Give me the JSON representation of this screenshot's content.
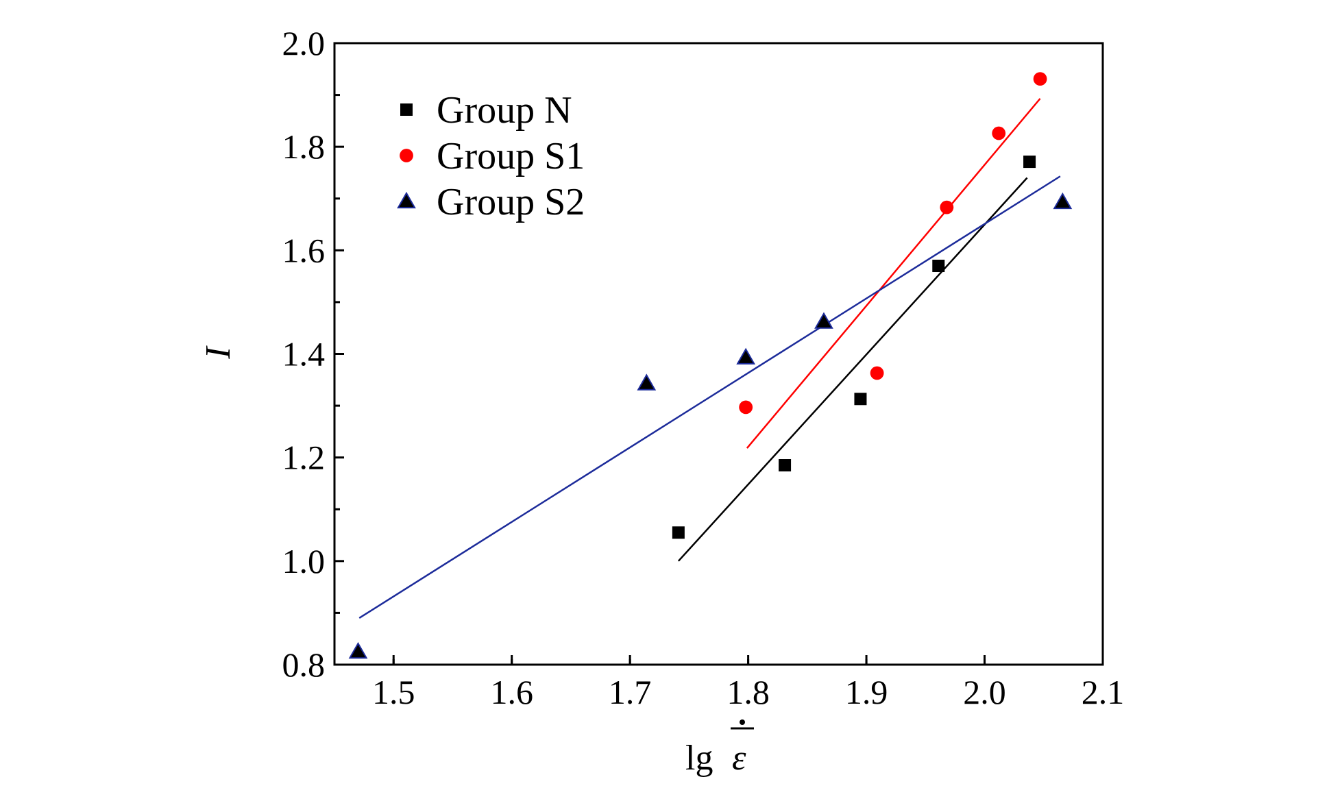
{
  "chart_data": {
    "type": "scatter",
    "title": "",
    "xlabel_prefix": "lg",
    "xlabel_symbol": "ε",
    "ylabel": "I",
    "xlim": [
      1.45,
      2.1
    ],
    "ylim": [
      0.8,
      2.0
    ],
    "xticks": [
      1.5,
      1.6,
      1.7,
      1.8,
      1.9,
      2.0,
      2.1
    ],
    "yticks": [
      0.8,
      1.0,
      1.2,
      1.4,
      1.6,
      1.8,
      2.0
    ],
    "xtick_labels": [
      "1.5",
      "1.6",
      "1.7",
      "1.8",
      "1.9",
      "2.0",
      "2.1"
    ],
    "ytick_labels": [
      "0.8",
      "1.0",
      "1.2",
      "1.4",
      "1.6",
      "1.8",
      "2.0"
    ],
    "grid": false,
    "legend_position": "top-left",
    "series": [
      {
        "name": "Group N",
        "marker": "square",
        "color": "#000000",
        "points": [
          [
            1.741,
            1.055
          ],
          [
            1.831,
            1.185
          ],
          [
            1.895,
            1.313
          ],
          [
            1.961,
            1.57
          ],
          [
            2.038,
            1.771
          ]
        ],
        "fit": [
          [
            1.741,
            1.0
          ],
          [
            2.036,
            1.74
          ]
        ]
      },
      {
        "name": "Group S1",
        "marker": "circle",
        "color": "#ff0000",
        "points": [
          [
            1.798,
            1.297
          ],
          [
            1.909,
            1.363
          ],
          [
            1.968,
            1.683
          ],
          [
            2.012,
            1.826
          ],
          [
            2.047,
            1.931
          ]
        ],
        "fit": [
          [
            1.799,
            1.218
          ],
          [
            2.047,
            1.893
          ]
        ]
      },
      {
        "name": "Group S2",
        "marker": "triangle",
        "color": "#000000",
        "points": [
          [
            1.47,
            0.825
          ],
          [
            1.714,
            1.343
          ],
          [
            1.798,
            1.393
          ],
          [
            1.864,
            1.462
          ],
          [
            2.066,
            1.693
          ]
        ],
        "fit": [
          [
            1.471,
            0.89
          ],
          [
            2.064,
            1.743
          ]
        ],
        "fit_color": "#1c2b9a"
      }
    ]
  }
}
